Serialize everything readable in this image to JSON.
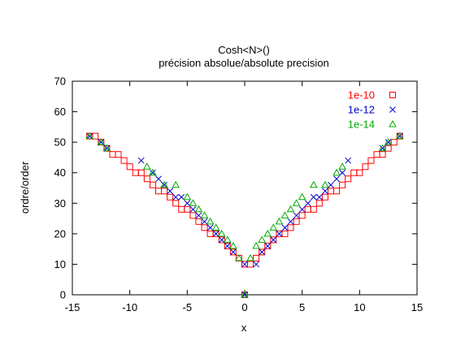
{
  "chart_data": {
    "type": "scatter",
    "title": "Cosh<N>()",
    "subtitle": "précision absolue/absolute precision",
    "xlabel": "x",
    "ylabel": "ordre/order",
    "xlim": [
      -15,
      15
    ],
    "ylim": [
      0,
      70
    ],
    "xticks": [
      -15,
      -10,
      -5,
      0,
      5,
      10,
      15
    ],
    "yticks": [
      0,
      10,
      20,
      30,
      40,
      50,
      60,
      70
    ],
    "grid": false,
    "legend_position": "top-right",
    "series": [
      {
        "name": "1e-10",
        "marker": "square",
        "color": "#ff0000",
        "points": [
          [
            -13.5,
            52
          ],
          [
            -13.0,
            52
          ],
          [
            -12.5,
            50
          ],
          [
            -12.0,
            48
          ],
          [
            -11.5,
            46
          ],
          [
            -11.0,
            46
          ],
          [
            -10.5,
            44
          ],
          [
            -10.0,
            42
          ],
          [
            -9.5,
            40
          ],
          [
            -9.0,
            40
          ],
          [
            -8.5,
            38
          ],
          [
            -8.0,
            36
          ],
          [
            -7.5,
            34
          ],
          [
            -7.0,
            34
          ],
          [
            -6.5,
            32
          ],
          [
            -6.0,
            30
          ],
          [
            -5.5,
            28
          ],
          [
            -5.0,
            28
          ],
          [
            -4.5,
            26
          ],
          [
            -4.0,
            24
          ],
          [
            -3.5,
            22
          ],
          [
            -3.0,
            20
          ],
          [
            -2.5,
            20
          ],
          [
            -2.0,
            18
          ],
          [
            -1.5,
            16
          ],
          [
            -1.0,
            14
          ],
          [
            -0.5,
            12
          ],
          [
            0.0,
            10
          ],
          [
            0.0,
            0
          ],
          [
            0.5,
            10
          ],
          [
            1.0,
            12
          ],
          [
            1.5,
            14
          ],
          [
            2.0,
            16
          ],
          [
            2.5,
            18
          ],
          [
            3.0,
            20
          ],
          [
            3.5,
            20
          ],
          [
            4.0,
            22
          ],
          [
            4.5,
            24
          ],
          [
            5.0,
            26
          ],
          [
            5.5,
            28
          ],
          [
            6.0,
            28
          ],
          [
            6.5,
            30
          ],
          [
            7.0,
            32
          ],
          [
            7.5,
            34
          ],
          [
            8.0,
            34
          ],
          [
            8.5,
            36
          ],
          [
            9.0,
            38
          ],
          [
            9.5,
            40
          ],
          [
            10.0,
            40
          ],
          [
            10.5,
            42
          ],
          [
            11.0,
            44
          ],
          [
            11.5,
            46
          ],
          [
            12.0,
            46
          ],
          [
            12.5,
            48
          ],
          [
            13.0,
            50
          ],
          [
            13.5,
            52
          ]
        ]
      },
      {
        "name": "1e-12",
        "marker": "cross",
        "color": "#0000cc",
        "points": [
          [
            -13.5,
            52
          ],
          [
            -12.5,
            50
          ],
          [
            -12.0,
            48
          ],
          [
            -9.0,
            44
          ],
          [
            -8.0,
            40
          ],
          [
            -7.5,
            38
          ],
          [
            -7.0,
            36
          ],
          [
            -6.5,
            34
          ],
          [
            -6.0,
            32
          ],
          [
            -5.5,
            32
          ],
          [
            -5.0,
            30
          ],
          [
            -4.5,
            28
          ],
          [
            -4.0,
            26
          ],
          [
            -3.5,
            24
          ],
          [
            -3.0,
            22
          ],
          [
            -2.5,
            20
          ],
          [
            -2.0,
            18
          ],
          [
            -1.5,
            16
          ],
          [
            -1.0,
            14
          ],
          [
            0.0,
            10
          ],
          [
            0.0,
            0
          ],
          [
            1.0,
            10
          ],
          [
            1.5,
            14
          ],
          [
            2.0,
            16
          ],
          [
            2.5,
            18
          ],
          [
            3.0,
            20
          ],
          [
            3.5,
            22
          ],
          [
            4.0,
            24
          ],
          [
            4.5,
            26
          ],
          [
            5.0,
            28
          ],
          [
            5.5,
            30
          ],
          [
            6.0,
            32
          ],
          [
            6.5,
            32
          ],
          [
            7.0,
            34
          ],
          [
            7.5,
            36
          ],
          [
            8.0,
            38
          ],
          [
            8.5,
            40
          ],
          [
            9.0,
            44
          ],
          [
            12.0,
            48
          ],
          [
            12.5,
            50
          ],
          [
            13.5,
            52
          ]
        ]
      },
      {
        "name": "1e-14",
        "marker": "triangle",
        "color": "#00aa00",
        "points": [
          [
            -13.5,
            52
          ],
          [
            -12.5,
            50
          ],
          [
            -12.0,
            48
          ],
          [
            -8.5,
            42
          ],
          [
            -8.0,
            40
          ],
          [
            -7.0,
            36
          ],
          [
            -6.0,
            36
          ],
          [
            -5.0,
            32
          ],
          [
            -4.5,
            30
          ],
          [
            -4.0,
            28
          ],
          [
            -3.5,
            26
          ],
          [
            -3.0,
            24
          ],
          [
            -2.5,
            22
          ],
          [
            -2.0,
            20
          ],
          [
            -1.5,
            18
          ],
          [
            -1.0,
            16
          ],
          [
            -0.5,
            12
          ],
          [
            0.0,
            0
          ],
          [
            0.5,
            12
          ],
          [
            1.0,
            16
          ],
          [
            1.5,
            18
          ],
          [
            2.0,
            20
          ],
          [
            2.5,
            22
          ],
          [
            3.0,
            24
          ],
          [
            3.5,
            26
          ],
          [
            4.0,
            28
          ],
          [
            4.5,
            30
          ],
          [
            5.0,
            32
          ],
          [
            6.0,
            36
          ],
          [
            7.0,
            36
          ],
          [
            8.0,
            40
          ],
          [
            8.5,
            42
          ],
          [
            12.0,
            48
          ],
          [
            12.5,
            50
          ],
          [
            13.5,
            52
          ]
        ]
      }
    ]
  }
}
